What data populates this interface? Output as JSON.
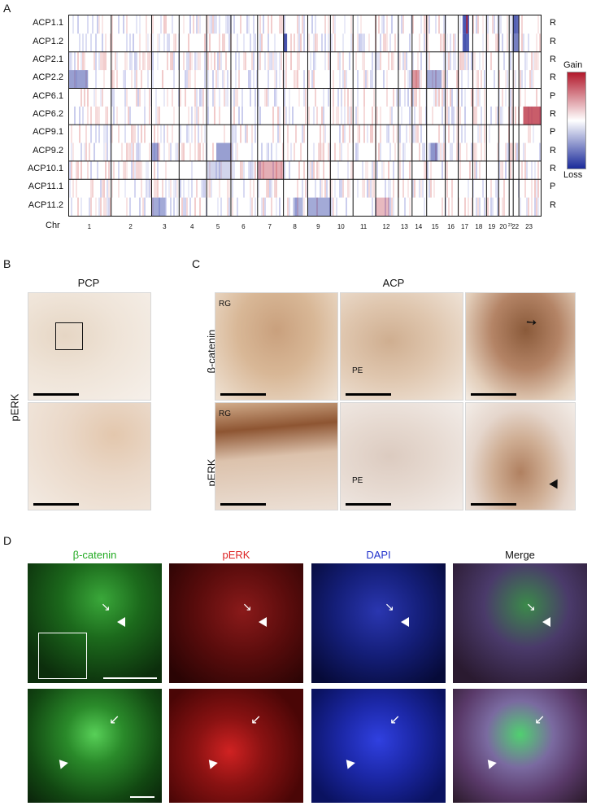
{
  "panel_letters": {
    "a": "A",
    "b": "B",
    "c": "C",
    "d": "D"
  },
  "panel_a": {
    "samples": [
      {
        "name": "ACP1.1",
        "status": "R"
      },
      {
        "name": "ACP1.2",
        "status": "R"
      },
      {
        "name": "ACP2.1",
        "status": "R"
      },
      {
        "name": "ACP2.2",
        "status": "R"
      },
      {
        "name": "ACP6.1",
        "status": "P"
      },
      {
        "name": "ACP6.2",
        "status": "R"
      },
      {
        "name": "ACP9.1",
        "status": "P"
      },
      {
        "name": "ACP9.2",
        "status": "R"
      },
      {
        "name": "ACP10.1",
        "status": "R"
      },
      {
        "name": "ACP11.1",
        "status": "P"
      },
      {
        "name": "ACP11.2",
        "status": "R"
      }
    ],
    "chr_axis_label": "Chr",
    "chromosomes": [
      "1",
      "2",
      "3",
      "4",
      "5",
      "6",
      "7",
      "8",
      "9",
      "10",
      "11",
      "12",
      "13",
      "14",
      "15",
      "16",
      "17",
      "18",
      "19",
      "20",
      "21",
      "22",
      "23"
    ],
    "legend": {
      "gain_label": "Gain",
      "loss_label": "Loss",
      "gain_color": "#b2182b",
      "loss_color": "#1a2a9a"
    }
  },
  "panel_b": {
    "column_title": "PCP",
    "row_title": "pERK"
  },
  "panel_c": {
    "column_title": "ACP",
    "row_titles": [
      "β-catenin",
      "pERK"
    ],
    "annotations": {
      "rg": "RG",
      "pe": "PE"
    }
  },
  "panel_d": {
    "channels": [
      {
        "label": "β-catenin",
        "color": "#22aa22"
      },
      {
        "label": "pERK",
        "color": "#dd2222"
      },
      {
        "label": "DAPI",
        "color": "#2233cc"
      },
      {
        "label": "Merge",
        "color": "#111111"
      }
    ]
  }
}
